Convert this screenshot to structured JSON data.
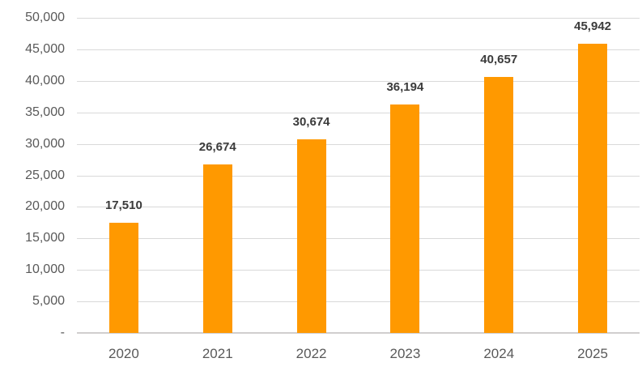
{
  "chart_data": {
    "type": "bar",
    "title": "",
    "xlabel": "",
    "ylabel": "",
    "categories": [
      "2020",
      "2021",
      "2022",
      "2023",
      "2024",
      "2025"
    ],
    "values": [
      17510,
      26674,
      30674,
      36194,
      40657,
      45942
    ],
    "value_labels": [
      "17,510",
      "26,674",
      "30,674",
      "36,194",
      "40,657",
      "45,942"
    ],
    "ylim": [
      0,
      50000
    ],
    "ytick_step": 5000,
    "ytick_labels": [
      "-",
      "5,000",
      "10,000",
      "15,000",
      "20,000",
      "25,000",
      "30,000",
      "35,000",
      "40,000",
      "45,000",
      "50,000"
    ],
    "grid": true,
    "legend": "none",
    "colors": {
      "bar": "#FF9900",
      "data_label": "#3B3B3B",
      "axis_text": "#595959",
      "gridline": "#D9D9D9",
      "axis_line": "#D0CECE",
      "background": "#FFFFFF"
    }
  }
}
